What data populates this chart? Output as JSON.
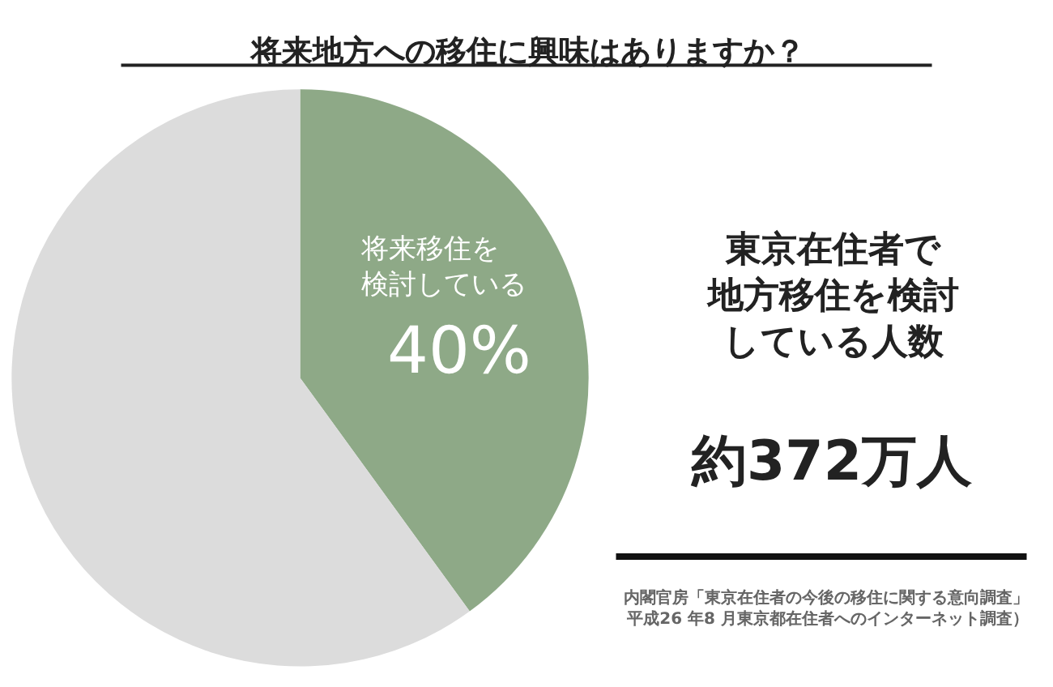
{
  "chart_data": {
    "type": "pie",
    "title": "将来地方への移住に興味はありますか？",
    "categories": [
      "将来移住を検討している",
      null
    ],
    "values": [
      40,
      60
    ],
    "value_labels": [
      "40%",
      null
    ],
    "colors": [
      "#8ea987",
      "#dcdcdc"
    ],
    "legend": false,
    "annotations": [
      "東京在住者で地方移住を検討している人数",
      "約372万人",
      "内閣官房「東京在住者の今後の移住に関する意向調査」平成26 年8 月東京都在住者へのインターネット調査）"
    ]
  }
}
